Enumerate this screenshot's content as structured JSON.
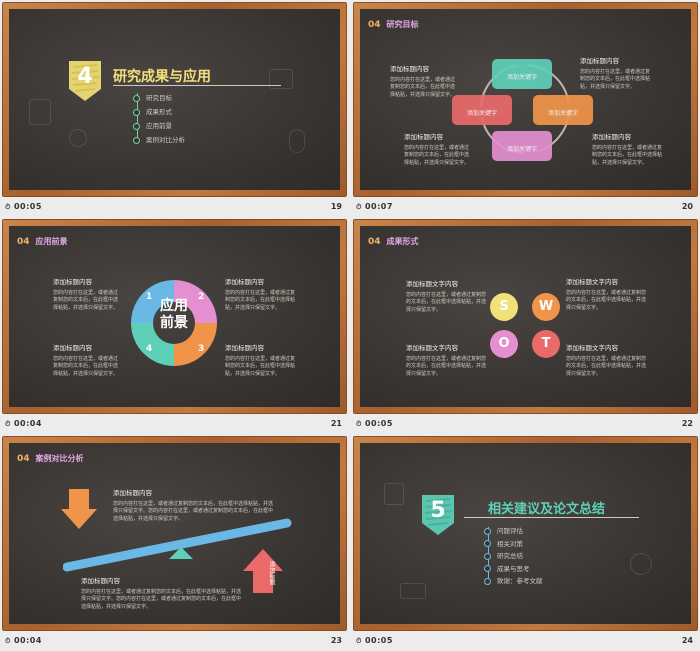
{
  "slides": [
    {
      "num": "19",
      "time": "00:05",
      "section_num": "4",
      "title": "研究成果与应用",
      "items": [
        "研究目标",
        "成果形式",
        "应用前景",
        "案例对比分析"
      ]
    },
    {
      "num": "20",
      "time": "00:07",
      "header_num": "04",
      "header": "研究目标",
      "card_label": "添加关键字",
      "blocks": [
        {
          "t": "添加标题内容",
          "b": "您的内容打在这里，或者通过复制您的文本后，在此框中选择粘贴，并选择只保留文字。"
        },
        {
          "t": "添加标题内容",
          "b": "您的内容打在这里，或者通过复制您的文本后，在此框中选择粘贴，并选择只保留文字。"
        },
        {
          "t": "添加标题内容",
          "b": "您的内容打在这里，或者通过复制您的文本后，在此框中选择粘贴，并选择只保留文字。"
        },
        {
          "t": "添加标题内容",
          "b": "您的内容打在这里，或者通过复制您的文本后，在此框中选择粘贴，并选择只保留文字。"
        }
      ]
    },
    {
      "num": "21",
      "time": "00:04",
      "header_num": "04",
      "header": "应用前景",
      "center1": "应用",
      "center2": "前景",
      "nums": [
        "1",
        "2",
        "3",
        "4"
      ],
      "blocks": [
        {
          "t": "添加标题内容",
          "b": "您的内容打在这里，或者通过复制您的文本后，在此框中选择粘贴，并选择只保留文字。"
        },
        {
          "t": "添加标题内容",
          "b": "您的内容打在这里，或者通过复制您的文本后，在此框中选择粘贴，并选择只保留文字。"
        },
        {
          "t": "添加标题内容",
          "b": "您的内容打在这里，或者通过复制您的文本后，在此框中选择粘贴，并选择只保留文字。"
        },
        {
          "t": "添加标题内容",
          "b": "您的内容打在这里，或者通过复制您的文本后，在此框中选择粘贴，并选择只保留文字。"
        }
      ]
    },
    {
      "num": "22",
      "time": "00:05",
      "header_num": "04",
      "header": "成果形式",
      "swot": [
        "S",
        "W",
        "O",
        "T"
      ],
      "blocks": [
        {
          "t": "添加标题文字内容",
          "b": "您的内容打在这里，或者通过复制您的文本后，在此框中选择粘贴，并选择只保留文字。"
        },
        {
          "t": "添加标题文字内容",
          "b": "您的内容打在这里，或者通过复制您的文本后，在此框中选择粘贴，并选择只保留文字。"
        },
        {
          "t": "添加标题文字内容",
          "b": "您的内容打在这里，或者通过复制您的文本后，在此框中选择粘贴，并选择只保留文字。"
        },
        {
          "t": "添加标题文字内容",
          "b": "您的内容打在这里，或者通过复制您的文本后，在此框中选择粘贴，并选择只保留文字。"
        }
      ]
    },
    {
      "num": "23",
      "time": "00:04",
      "header_num": "04",
      "header": "案例对比分析",
      "arrow_label": "添加标题",
      "blocks": [
        {
          "t": "添加标题内容",
          "b": "您的内容打在这里，或者通过复制您的文本后，在此框中选择粘贴，并选择只保留文字。您的内容打在这里，或者通过复制您的文本后，在此框中选择粘贴，并选择只保留文字。"
        },
        {
          "t": "添加标题内容",
          "b": "您的内容打在这里，或者通过复制您的文本后，在此框中选择粘贴，并选择只保留文字。您的内容打在这里，或者通过复制您的文本后，在此框中选择粘贴，并选择只保留文字。"
        }
      ]
    },
    {
      "num": "24",
      "time": "00:05",
      "section_num": "5",
      "title": "相关建议及论文总结",
      "items": [
        "问题评估",
        "相关对策",
        "研究总结",
        "成果与思考",
        "致谢：参考文献"
      ]
    }
  ],
  "colors": {
    "yellow": "#f2e07a",
    "teal": "#5fd0b8",
    "pink": "#e48fd0",
    "orange": "#f0944a",
    "blue": "#6ab8e4",
    "green": "#6cd6a0",
    "red": "#ea6a6a"
  }
}
